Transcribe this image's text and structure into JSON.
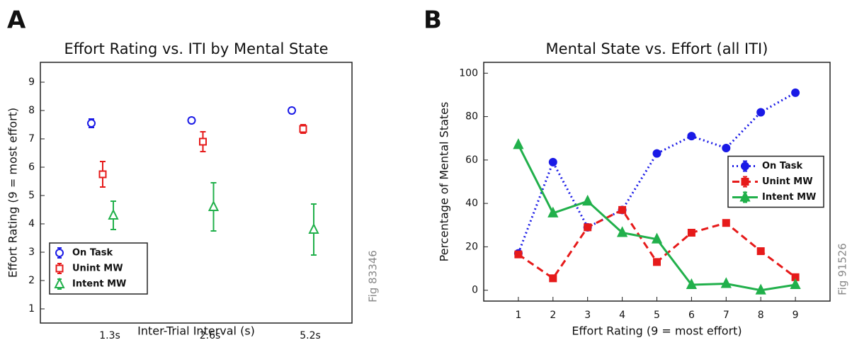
{
  "chart_data": [
    {
      "type": "errorbar",
      "panel_label": "A",
      "title": "Effort Rating vs. ITI by Mental State",
      "xlabel": "Inter-Trial Interval (s)",
      "ylabel": "Effort Rating (9 = most effort)",
      "watermark": "Fig 83346",
      "categories": [
        "1.3s",
        "2.6s",
        "5.2s"
      ],
      "ylim": [
        0.5,
        9.7
      ],
      "yticks": [
        1,
        2,
        3,
        4,
        5,
        6,
        7,
        8,
        9
      ],
      "legend": "lower left",
      "series": [
        {
          "name": "On Task",
          "color": "#1a1ae6",
          "marker": "circle",
          "values": [
            7.55,
            7.65,
            8.0
          ],
          "errors": [
            0.15,
            0.1,
            0.1
          ]
        },
        {
          "name": "Unint MW",
          "color": "#e61a1a",
          "marker": "square",
          "values": [
            5.75,
            6.9,
            7.35
          ],
          "errors": [
            0.45,
            0.35,
            0.15
          ]
        },
        {
          "name": "Intent MW",
          "color": "#21b04b",
          "marker": "triangle",
          "values": [
            4.3,
            4.6,
            3.8
          ],
          "errors": [
            0.5,
            0.85,
            0.9
          ]
        }
      ]
    },
    {
      "type": "line",
      "panel_label": "B",
      "title": "Mental State vs. Effort (all ITI)",
      "xlabel": "Effort Rating (9 = most effort)",
      "ylabel": "Percentage of Mental States",
      "watermark": "Fig 91526",
      "x": [
        1,
        2,
        3,
        4,
        5,
        6,
        7,
        8,
        9
      ],
      "xlim": [
        0,
        10
      ],
      "xticks": [
        1,
        2,
        3,
        4,
        5,
        6,
        7,
        8,
        9
      ],
      "ylim": [
        -5,
        105
      ],
      "yticks": [
        0,
        20,
        40,
        60,
        80,
        100
      ],
      "legend": "center right",
      "series": [
        {
          "name": "On Task",
          "color": "#1a1ae6",
          "marker": "circle",
          "linestyle": "dotted",
          "values": [
            17,
            59,
            29,
            37,
            63,
            71,
            65.5,
            82,
            91
          ]
        },
        {
          "name": "Unint MW",
          "color": "#e61a1a",
          "marker": "square",
          "linestyle": "dashed",
          "values": [
            16.5,
            5.5,
            29,
            37,
            13,
            26.5,
            31,
            18,
            6
          ]
        },
        {
          "name": "Intent MW",
          "color": "#21b04b",
          "marker": "triangle",
          "linestyle": "solid",
          "values": [
            67,
            35.5,
            41,
            26.5,
            23.5,
            2.5,
            3,
            0,
            2.5
          ]
        }
      ]
    }
  ]
}
